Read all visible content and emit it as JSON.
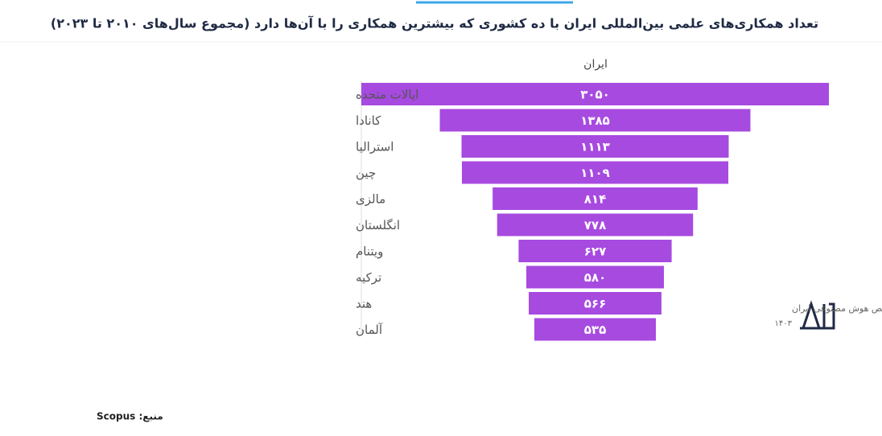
{
  "chart_data": {
    "type": "funnel",
    "title": "تعداد همکاری‌های علمی بین‌المللی ایران با ده کشوری که بیشترین همکاری را با آن‌ها دارد (مجموع سال‌های ۲۰۱۰ تا ۲۰۲۳)",
    "categories": [
      "ایالات متحده",
      "کانادا",
      "استرالیا",
      "چین",
      "مالزی",
      "انگلستان",
      "ویتنام",
      "ترکیه",
      "هند",
      "آلمان"
    ],
    "series": [
      {
        "name": "ایران",
        "color": "#a74ae0",
        "values": [
          3050,
          1385,
          1113,
          1109,
          814,
          778,
          627,
          580,
          566,
          535
        ],
        "value_labels": [
          "۳۰۵۰",
          "۱۳۸۵",
          "۱۱۱۳",
          "۱۱۰۹",
          "۸۱۴",
          "۷۷۸",
          "۶۲۷",
          "۵۸۰",
          "۵۶۶",
          "۵۳۵"
        ]
      }
    ],
    "log_scale": true,
    "source": "منبع: Scopus",
    "logo_text": "شاخص هوش مصنوعی ایران",
    "logo_year": "۱۴۰۳"
  }
}
